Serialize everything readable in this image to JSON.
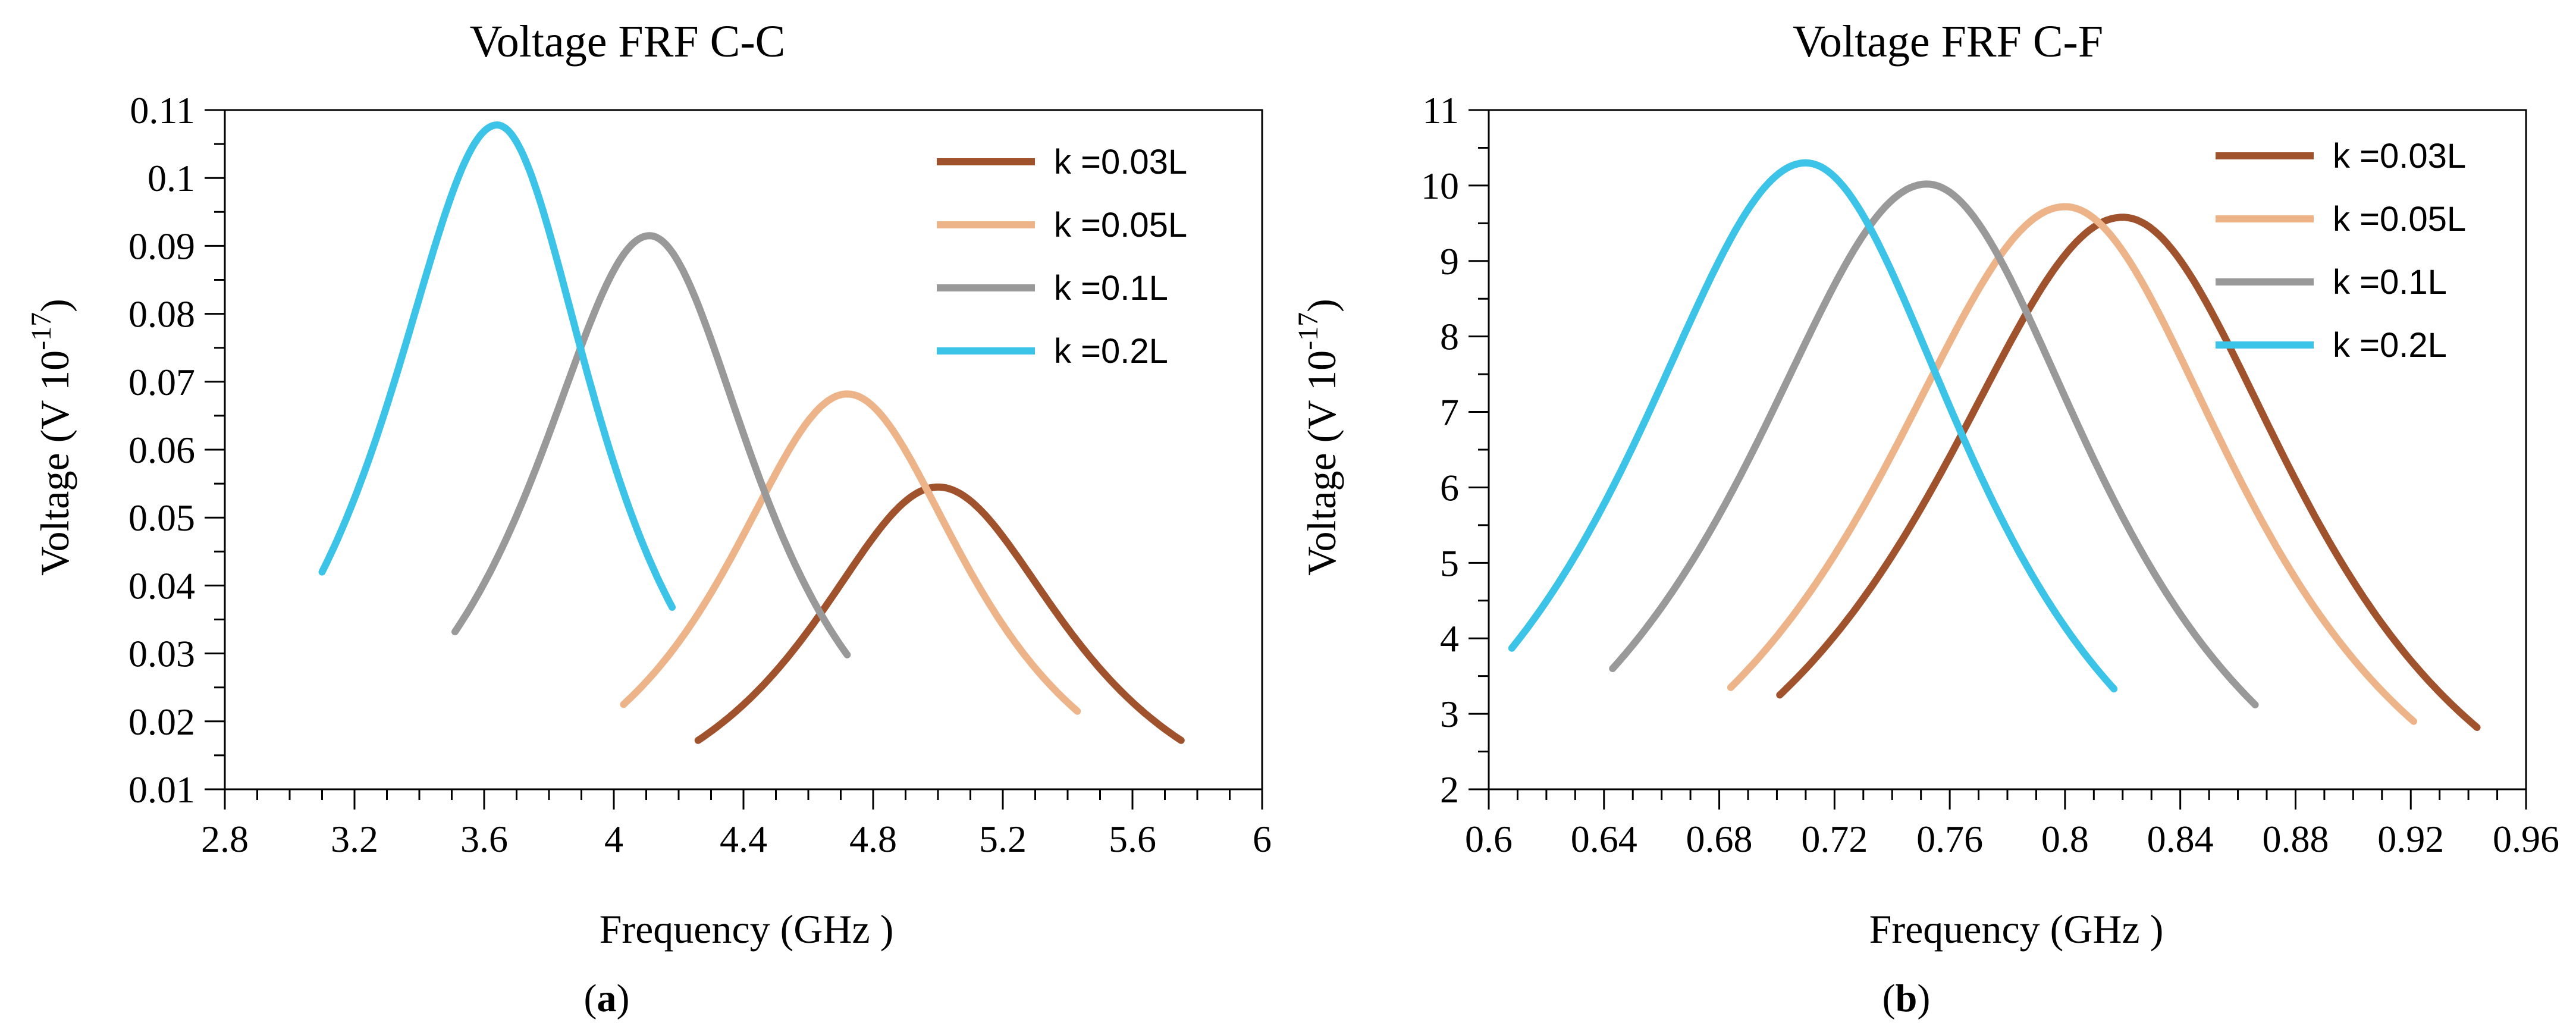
{
  "chart_data": [
    {
      "panel_label": "a",
      "type": "line",
      "title": "Voltage  FRF  C-C",
      "xlabel": "Frequency (GHz )",
      "ylabel_main": "Voltage  (V 10",
      "ylabel_exp": "-17",
      "ylabel_close": ")",
      "xlim": [
        2.8,
        6.0
      ],
      "ylim": [
        0.01,
        0.11
      ],
      "xticks": [
        2.8,
        3.2,
        3.6,
        4,
        4.4,
        4.8,
        5.2,
        5.6,
        6
      ],
      "xtick_labels": [
        "2.8",
        "3.2",
        "3.6",
        "4",
        "4.4",
        "4.8",
        "5.2",
        "5.6",
        "6"
      ],
      "yticks": [
        0.01,
        0.02,
        0.03,
        0.04,
        0.05,
        0.06,
        0.07,
        0.08,
        0.09,
        0.1,
        0.11
      ],
      "ytick_labels": [
        "0.01",
        "0.02",
        "0.03",
        "0.04",
        "0.05",
        "0.06",
        "0.07",
        "0.08",
        "0.09",
        "0.1",
        "0.11"
      ],
      "legend_position": "top-right",
      "series": [
        {
          "name": "k =0.03L",
          "color": "#A0522D",
          "peak_x": 5.0,
          "peak_y": 0.0545,
          "x_range": [
            4.26,
            5.75
          ],
          "y_left": 0.0172,
          "y_right": 0.0172
        },
        {
          "name": "k =0.05L",
          "color": "#EDB48A",
          "peak_x": 4.72,
          "peak_y": 0.0682,
          "x_range": [
            4.03,
            5.43
          ],
          "y_left": 0.0225,
          "y_right": 0.0215
        },
        {
          "name": "k =0.1L",
          "color": "#999999",
          "peak_x": 4.11,
          "peak_y": 0.0915,
          "x_range": [
            3.51,
            4.72
          ],
          "y_left": 0.0332,
          "y_right": 0.0298
        },
        {
          "name": "k =0.2L",
          "color": "#3CC3E8",
          "peak_x": 3.64,
          "peak_y": 0.1078,
          "x_range": [
            3.1,
            4.18
          ],
          "y_left": 0.042,
          "y_right": 0.0368
        }
      ]
    },
    {
      "panel_label": "b",
      "type": "line",
      "title": "Voltage  FRF  C-F",
      "xlabel": "Frequency (GHz )",
      "ylabel_main": "Voltage  (V 10",
      "ylabel_exp": "-17",
      "ylabel_close": ")",
      "xlim": [
        0.6,
        0.96
      ],
      "ylim": [
        2,
        11
      ],
      "xticks": [
        0.6,
        0.64,
        0.68,
        0.72,
        0.76,
        0.8,
        0.84,
        0.88,
        0.92,
        0.96
      ],
      "xtick_labels": [
        "0.6",
        "0.64",
        "0.68",
        "0.72",
        "0.76",
        "0.8",
        "0.84",
        "0.88",
        "0.92",
        "0.96"
      ],
      "yticks": [
        2,
        3,
        4,
        5,
        6,
        7,
        8,
        9,
        10,
        11
      ],
      "ytick_labels": [
        "2",
        "3",
        "4",
        "5",
        "6",
        "7",
        "8",
        "9",
        "10",
        "11"
      ],
      "legend_position": "top-right",
      "series": [
        {
          "name": "k =0.03L",
          "color": "#A0522D",
          "peak_x": 0.82,
          "peak_y": 9.58,
          "x_range": [
            0.701,
            0.943
          ],
          "y_left": 3.25,
          "y_right": 2.82
        },
        {
          "name": "k =0.05L",
          "color": "#EDB48A",
          "peak_x": 0.8,
          "peak_y": 9.72,
          "x_range": [
            0.684,
            0.921
          ],
          "y_left": 3.35,
          "y_right": 2.9
        },
        {
          "name": "k =0.1L",
          "color": "#999999",
          "peak_x": 0.752,
          "peak_y": 10.02,
          "x_range": [
            0.643,
            0.866
          ],
          "y_left": 3.6,
          "y_right": 3.12
        },
        {
          "name": "k =0.2L",
          "color": "#3CC3E8",
          "peak_x": 0.71,
          "peak_y": 10.3,
          "x_range": [
            0.608,
            0.817
          ],
          "y_left": 3.87,
          "y_right": 3.33
        }
      ]
    }
  ]
}
